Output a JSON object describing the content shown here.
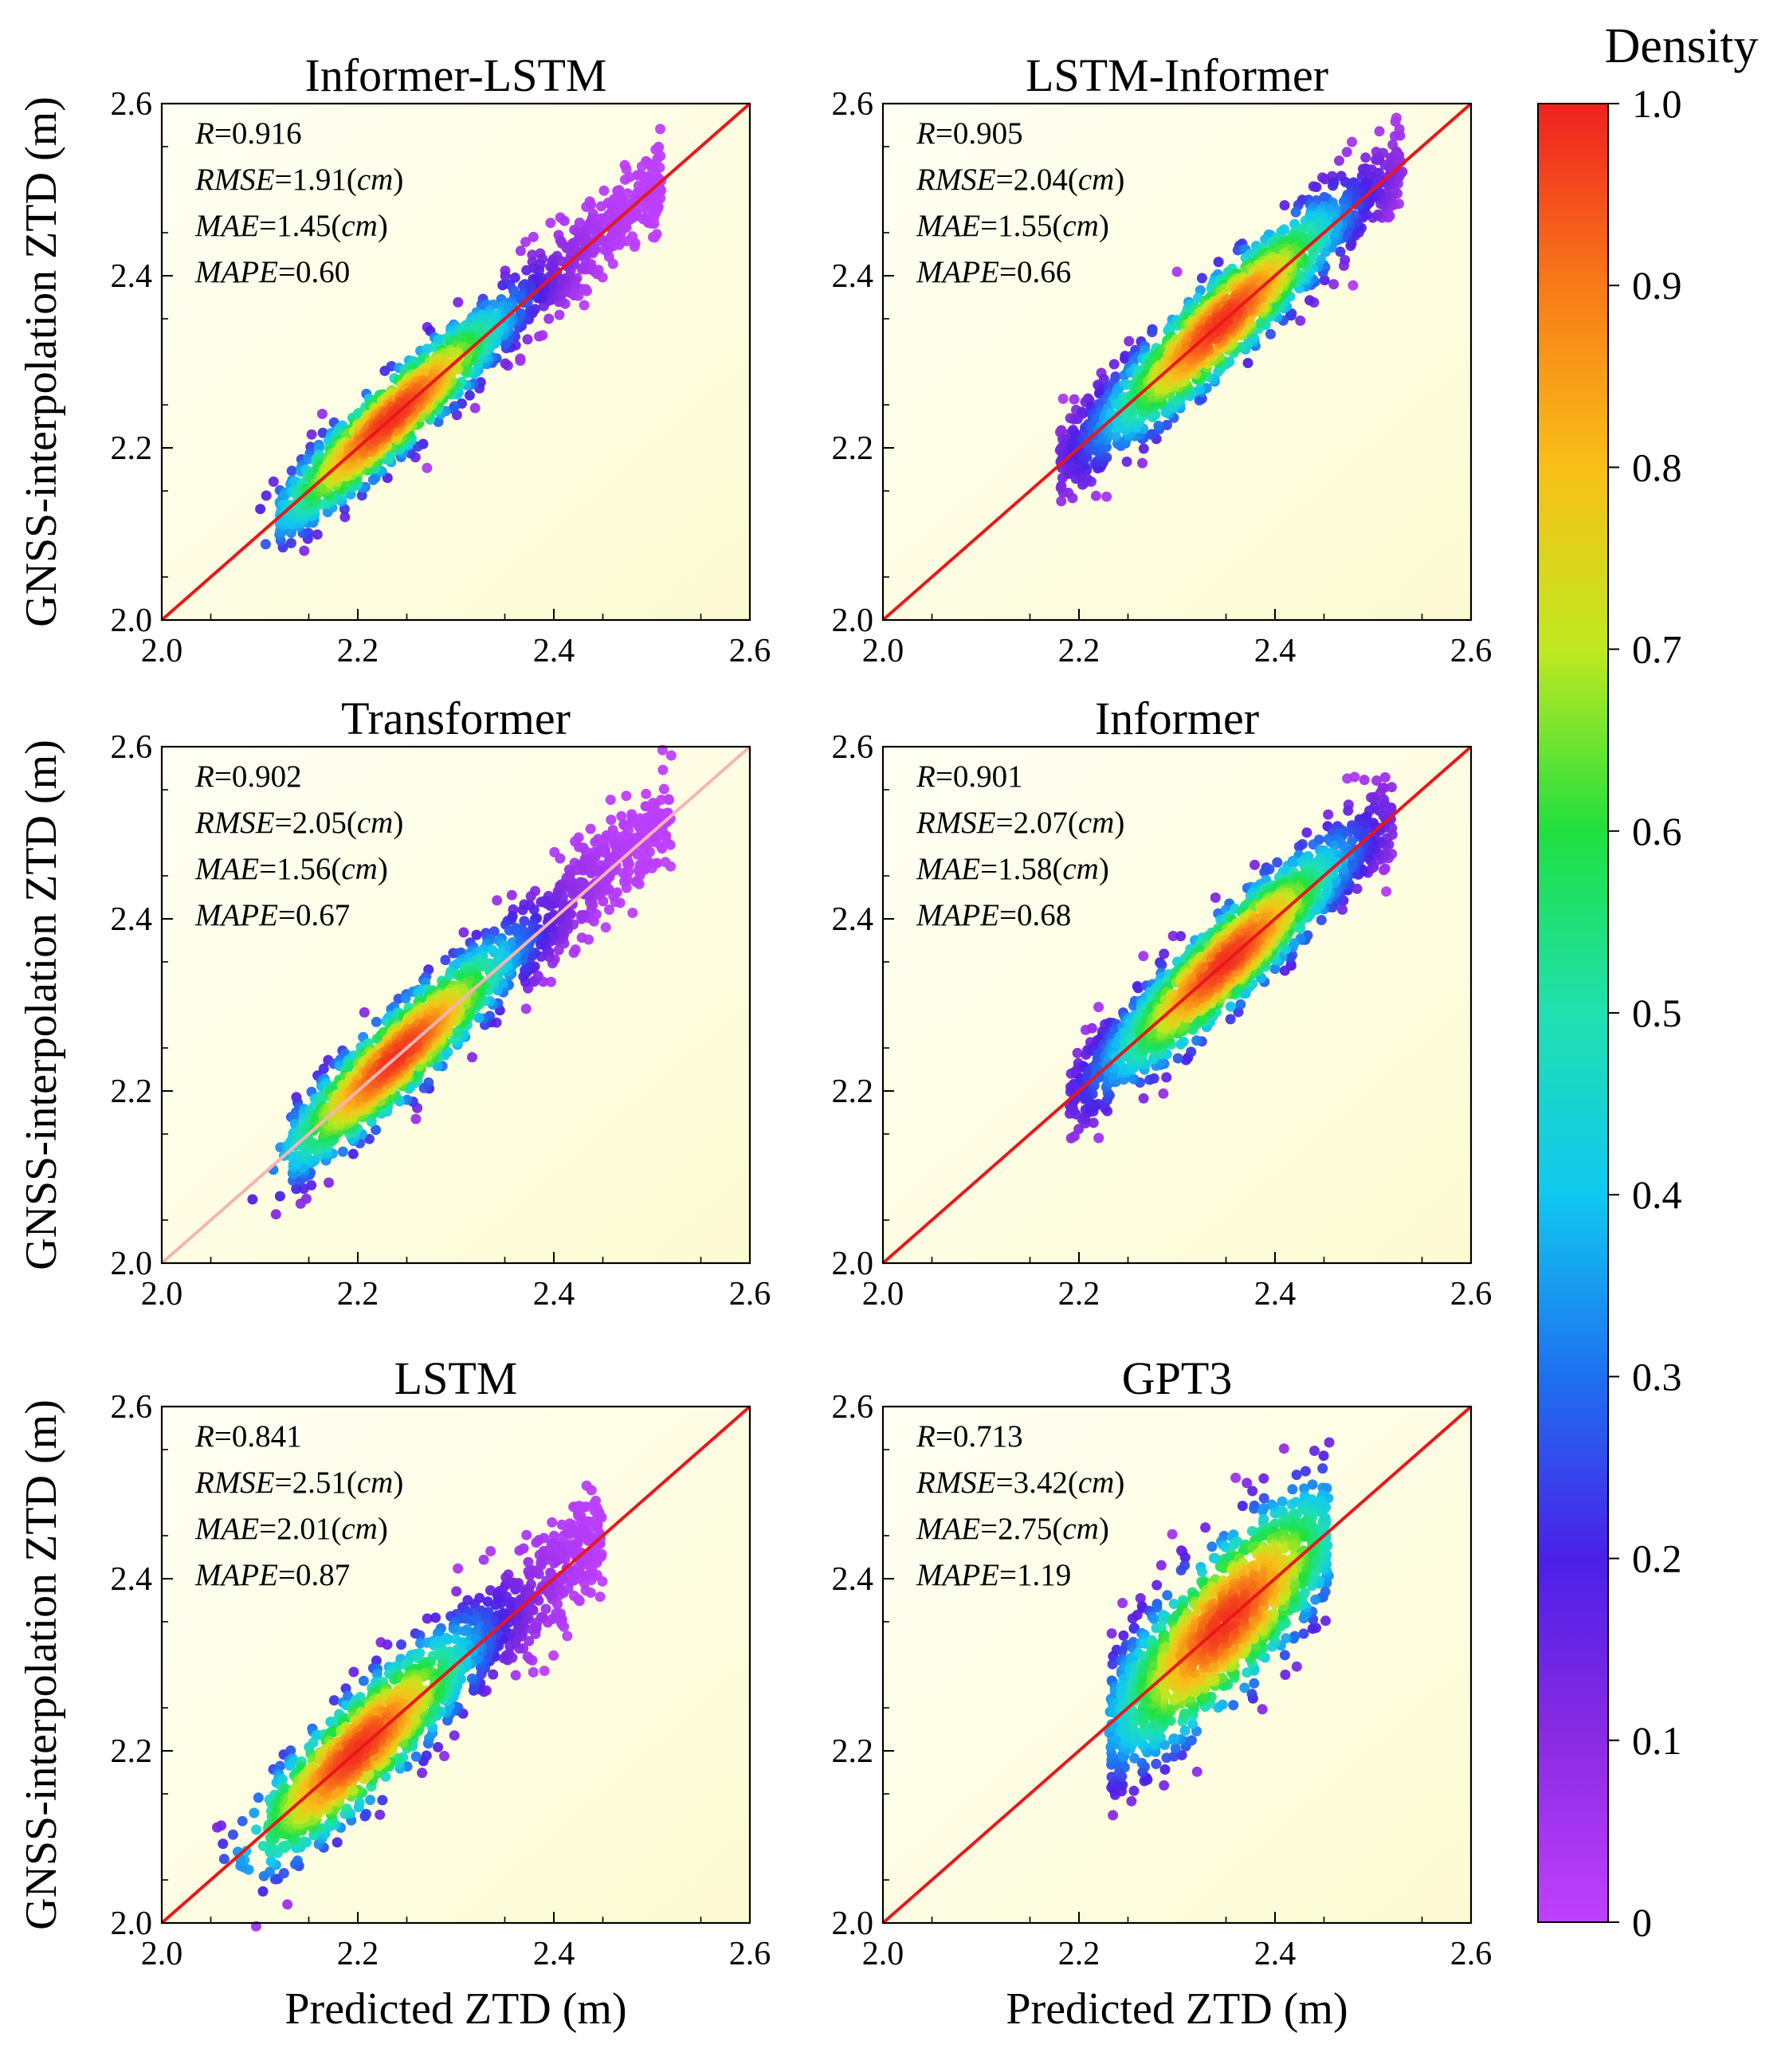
{
  "chart_data": {
    "type": "scatter",
    "figure_kind": "density scatter (6 panels)",
    "shared": {
      "xlabel": "Predicted ZTD (m)",
      "ylabel": "GNSS-interpolation ZTD  (m)",
      "xlim": [
        2.0,
        2.6
      ],
      "ylim": [
        2.0,
        2.6
      ],
      "ticks": [
        "2.0",
        "2.2",
        "2.4",
        "2.6"
      ],
      "tick_values": [
        2.0,
        2.2,
        2.4,
        2.6
      ],
      "reference_line": "1:1"
    },
    "colorbar": {
      "title": "Density",
      "range": [
        0,
        1.0
      ],
      "tick_values": [
        0,
        0.1,
        0.2,
        0.3,
        0.4,
        0.5,
        0.6,
        0.7,
        0.8,
        0.9,
        1.0
      ],
      "tick_labels": [
        "0",
        "0.1",
        "0.2",
        "0.3",
        "0.4",
        "0.5",
        "0.6",
        "0.7",
        "0.8",
        "0.9",
        "1.0"
      ],
      "colors": [
        "#c040ff",
        "#8a2be2",
        "#4b20e8",
        "#1e70f0",
        "#10c8f0",
        "#20e0b0",
        "#20e040",
        "#c0e820",
        "#f8c018",
        "#f87a18",
        "#f02020"
      ]
    },
    "panels": [
      {
        "title": "Informer-LSTM",
        "stats": {
          "R": "0.916",
          "RMSE": "1.91",
          "MAE": "1.45",
          "MAPE": "0.60"
        },
        "cloud": {
          "x_range": [
            2.12,
            2.51
          ],
          "slope": 1.0,
          "offset": 0.0,
          "spread": 0.024,
          "hot_x": 2.235
        }
      },
      {
        "title": "LSTM-Informer",
        "stats": {
          "R": "0.905",
          "RMSE": "2.04",
          "MAE": "1.55",
          "MAPE": "0.66"
        },
        "cloud": {
          "x_range": [
            2.18,
            2.53
          ],
          "slope": 1.0,
          "offset": 0.0,
          "spread": 0.028,
          "hot_x": 2.345
        }
      },
      {
        "title": "Transformer",
        "stats": {
          "R": "0.902",
          "RMSE": "2.05",
          "MAE": "1.56",
          "MAPE": "0.67"
        },
        "cloud": {
          "x_range": [
            2.13,
            2.52
          ],
          "slope": 1.0,
          "offset": 0.0,
          "spread": 0.027,
          "hot_x": 2.24
        }
      },
      {
        "title": "Informer",
        "stats": {
          "R": "0.901",
          "RMSE": "2.07",
          "MAE": "1.58",
          "MAPE": "0.68"
        },
        "cloud": {
          "x_range": [
            2.19,
            2.52
          ],
          "slope": 1.0,
          "offset": 0.0,
          "spread": 0.028,
          "hot_x": 2.35
        }
      },
      {
        "title": "LSTM",
        "stats": {
          "R": "0.841",
          "RMSE": "2.51",
          "MAE": "2.01",
          "MAPE": "0.87"
        },
        "cloud": {
          "x_range": [
            2.11,
            2.45
          ],
          "slope": 1.0,
          "offset": 0.0,
          "spread": 0.033,
          "hot_x": 2.2
        }
      },
      {
        "title": "GPT3",
        "stats": {
          "R": "0.713",
          "RMSE": "3.42",
          "MAE": "2.75",
          "MAPE": "1.19"
        },
        "cloud": {
          "x_range": [
            2.235,
            2.45
          ],
          "slope": 1.0,
          "offset": 0.0,
          "spread": 0.045,
          "hot_x": 2.35
        }
      }
    ]
  }
}
